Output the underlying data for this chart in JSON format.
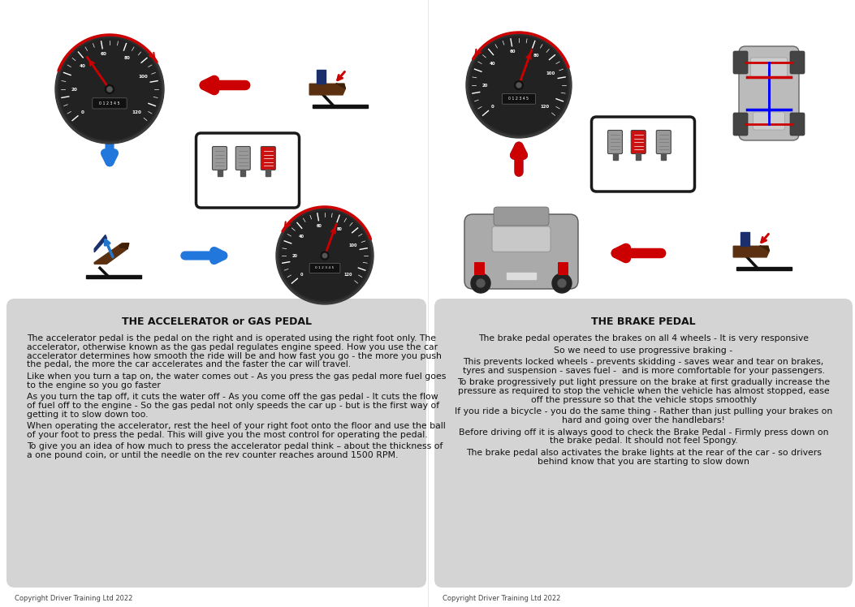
{
  "background_color": "#ffffff",
  "panel_bg_color": "#d4d4d4",
  "left_title": "THE ACCELERATOR or GAS PEDAL",
  "right_title": "THE BRAKE PEDAL",
  "left_body": [
    "The accelerator pedal is the pedal on the right and is operated using the right foot only. The",
    "accelerator, otherwise known as the gas pedal regulates engine speed. How you use the car",
    "accelerator determines how smooth the ride will be and how fast you go - the more you push",
    "the pedal, the more the car accelerates and the faster the car will travel.",
    "",
    "Like when you turn a tap on, the water comes out - As you press the gas pedal more fuel goes",
    "to the engine so you go faster",
    "",
    "As you turn the tap off, it cuts the water off - As you come off the gas pedal - It cuts the flow",
    "of fuel off to the engine - So the gas pedal not only speeds the car up - but is the first way of",
    "getting it to slow down too.",
    "",
    "When operating the accelerator, rest the heel of your right foot onto the floor and use the ball",
    "of your foot to press the pedal. This will give you the most control for operating the pedal.",
    "",
    "To give you an idea of how much to press the accelerator pedal think – about the thickness of",
    "a one pound coin, or until the needle on the rev counter reaches around 1500 RPM."
  ],
  "right_body": [
    "The brake pedal operates the brakes on all 4 wheels - It is very responsive",
    "",
    "So we need to use progressive braking -",
    "",
    "This prevents locked wheels - prevents skidding - saves wear and tear on brakes,",
    "tyres and suspension - saves fuel -  and is more comfortable for your passengers.",
    "",
    "To brake progressively put light pressure on the brake at first gradually increase the",
    "pressure as required to stop the vehicle when the vehicle has almost stopped, ease",
    "off the pressure so that the vehicle stops smoothly",
    "",
    "If you ride a bicycle - you do the same thing - Rather than just pulling your brakes on",
    "hard and going over the handlebars!",
    "",
    "Before driving off it is always good to check the Brake Pedal - Firmly press down on",
    "the brake pedal. It should not feel Spongy.",
    "",
    "The brake pedal also activates the brake lights at the rear of the car - so drivers",
    "behind know that you are starting to slow down"
  ],
  "copyright_text": "Copyright Driver Training Ltd 2022",
  "title_fontsize": 9,
  "body_fontsize": 7.8,
  "copyright_fontsize": 6
}
